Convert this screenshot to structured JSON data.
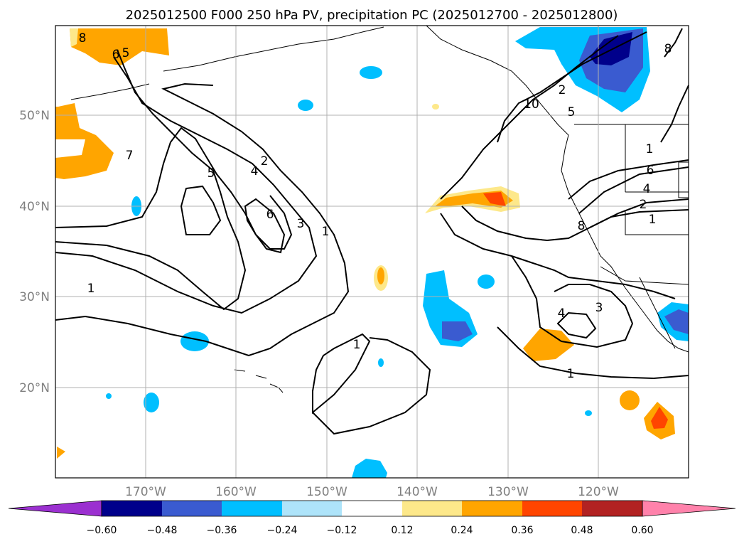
{
  "title": "2025012500 F000 250 hPa PV, precipitation PC (2025012700 - 2025012800)",
  "map": {
    "lon_labels": [
      "170°W",
      "160°W",
      "150°W",
      "140°W",
      "130°W",
      "120°W"
    ],
    "lat_labels": [
      "50°N",
      "40°N",
      "30°N",
      "20°N"
    ],
    "contour_labels": [
      "8",
      "6",
      "5",
      "7",
      "5",
      "2",
      "4",
      "6",
      "3",
      "1",
      "1",
      "1",
      "2",
      "10",
      "5",
      "1",
      "6",
      "4",
      "2",
      "1",
      "8",
      "4",
      "3",
      "1",
      "8"
    ],
    "grid": true
  },
  "colorbar": {
    "ticks": [
      "−0.60",
      "−0.48",
      "−0.36",
      "−0.24",
      "−0.12",
      "0.12",
      "0.24",
      "0.36",
      "0.48",
      "0.60"
    ],
    "colors": [
      "#9b30d0",
      "#00008b",
      "#3a5bd0",
      "#00bfff",
      "#aee4fa",
      "#ffffff",
      "#fde88a",
      "#ffa500",
      "#ff4500",
      "#b22222",
      "#ff82ab"
    ],
    "extend": "both"
  }
}
